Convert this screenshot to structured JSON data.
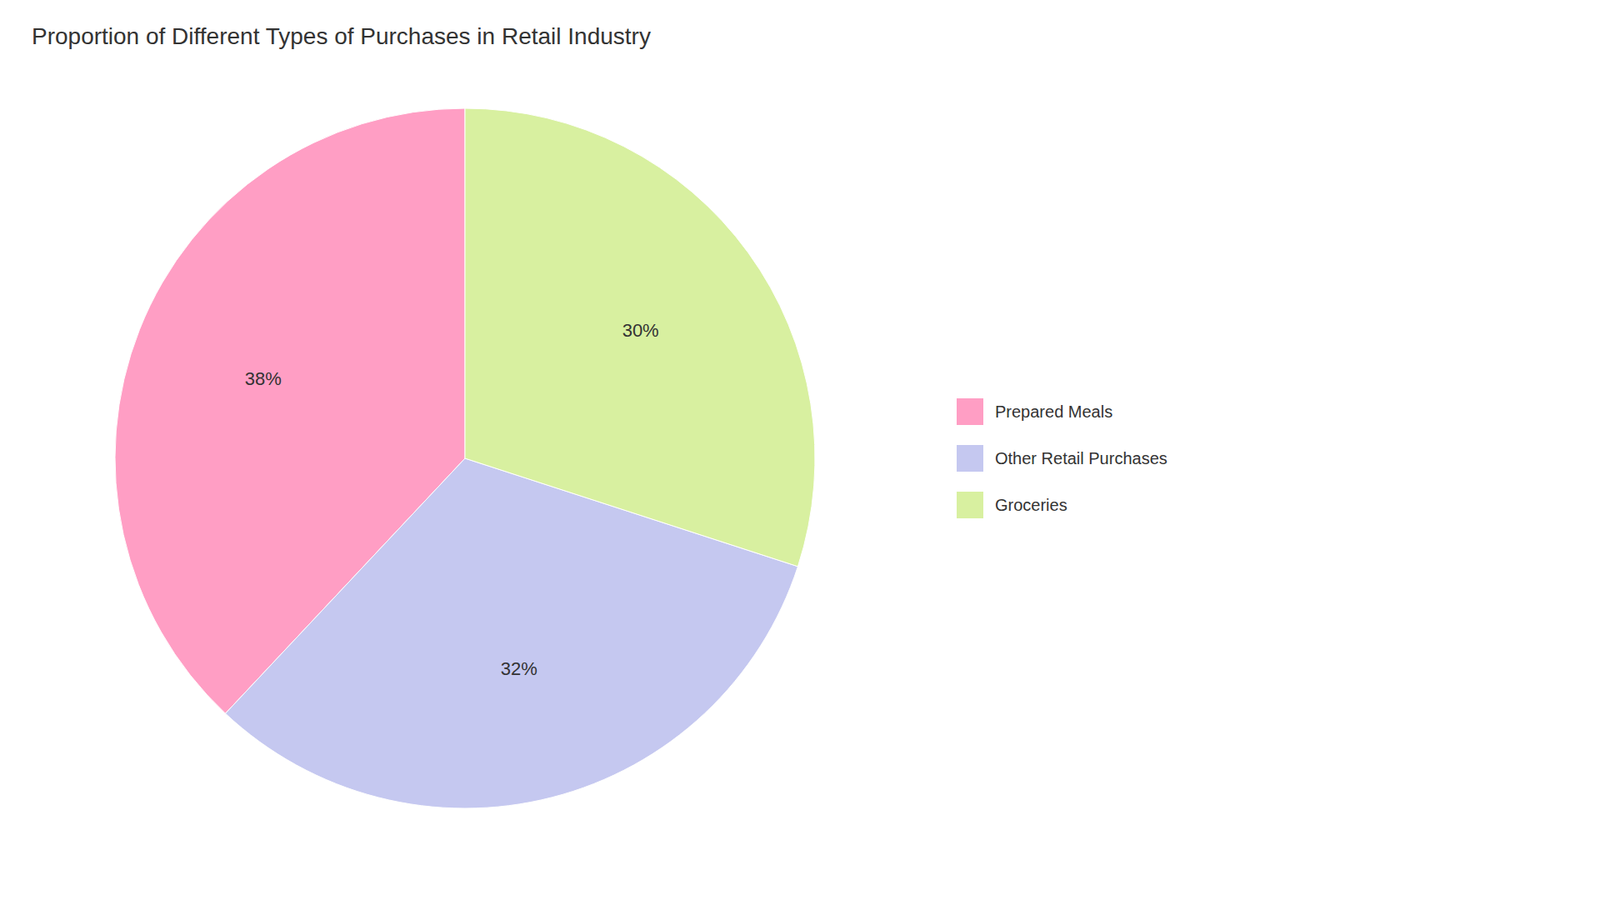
{
  "chart_data": {
    "type": "pie",
    "title": "Proportion of Different Types of Purchases in Retail Industry",
    "categories": [
      "Prepared Meals",
      "Other Retail Purchases",
      "Groceries"
    ],
    "values": [
      38,
      32,
      30
    ],
    "value_labels": [
      "38%",
      "32%",
      "30%"
    ],
    "colors": [
      "#FF9EC4",
      "#C5C8F0",
      "#D8F0A0"
    ],
    "data_labels": true,
    "legend": "right"
  }
}
